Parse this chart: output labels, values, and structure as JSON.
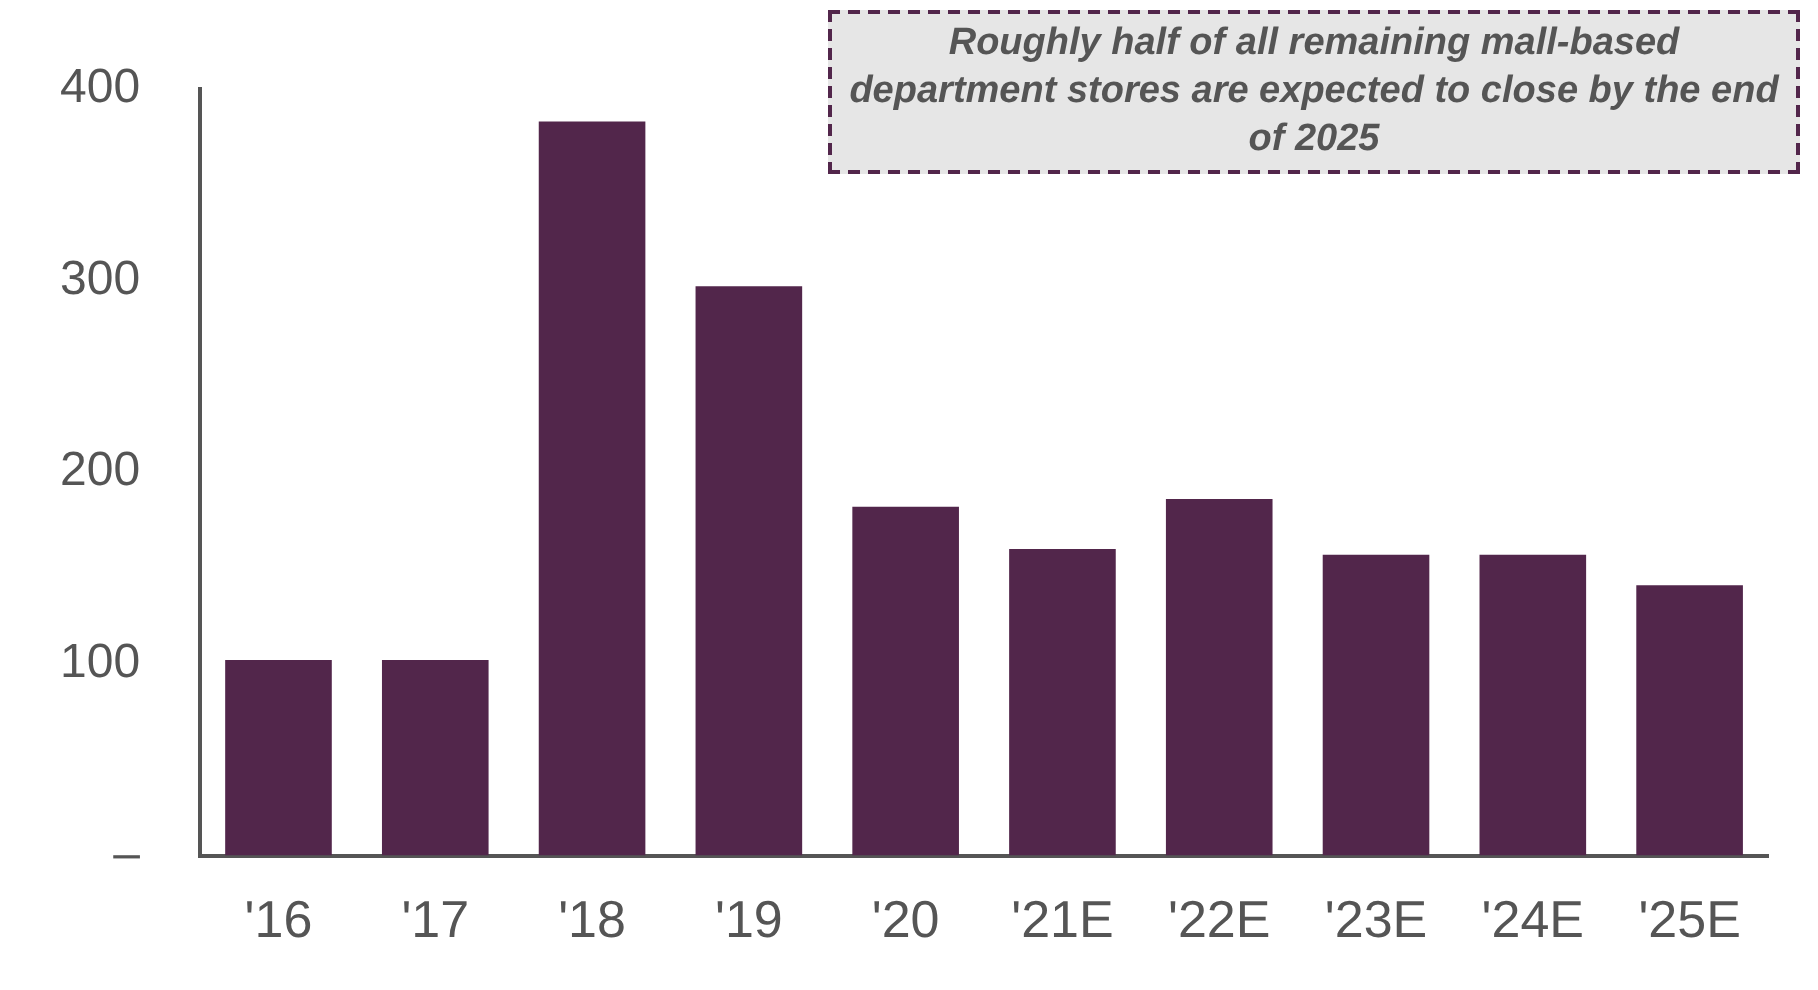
{
  "chart_data": {
    "type": "bar",
    "categories": [
      "'16",
      "'17",
      "'18",
      "'19",
      "'20",
      "'21E",
      "'22E",
      "'23E",
      "'24E",
      "'25E"
    ],
    "values": [
      102,
      102,
      383,
      297,
      182,
      160,
      186,
      157,
      157,
      141
    ],
    "color": "#52264b",
    "ylim": [
      0,
      400
    ],
    "yticks": [
      {
        "value": 0,
        "label": "–"
      },
      100,
      200,
      300,
      400
    ],
    "grid": false,
    "legend": false,
    "annotations": [
      "Roughly half of all remaining mall-based department stores are expected to close by the end of 2025"
    ]
  }
}
